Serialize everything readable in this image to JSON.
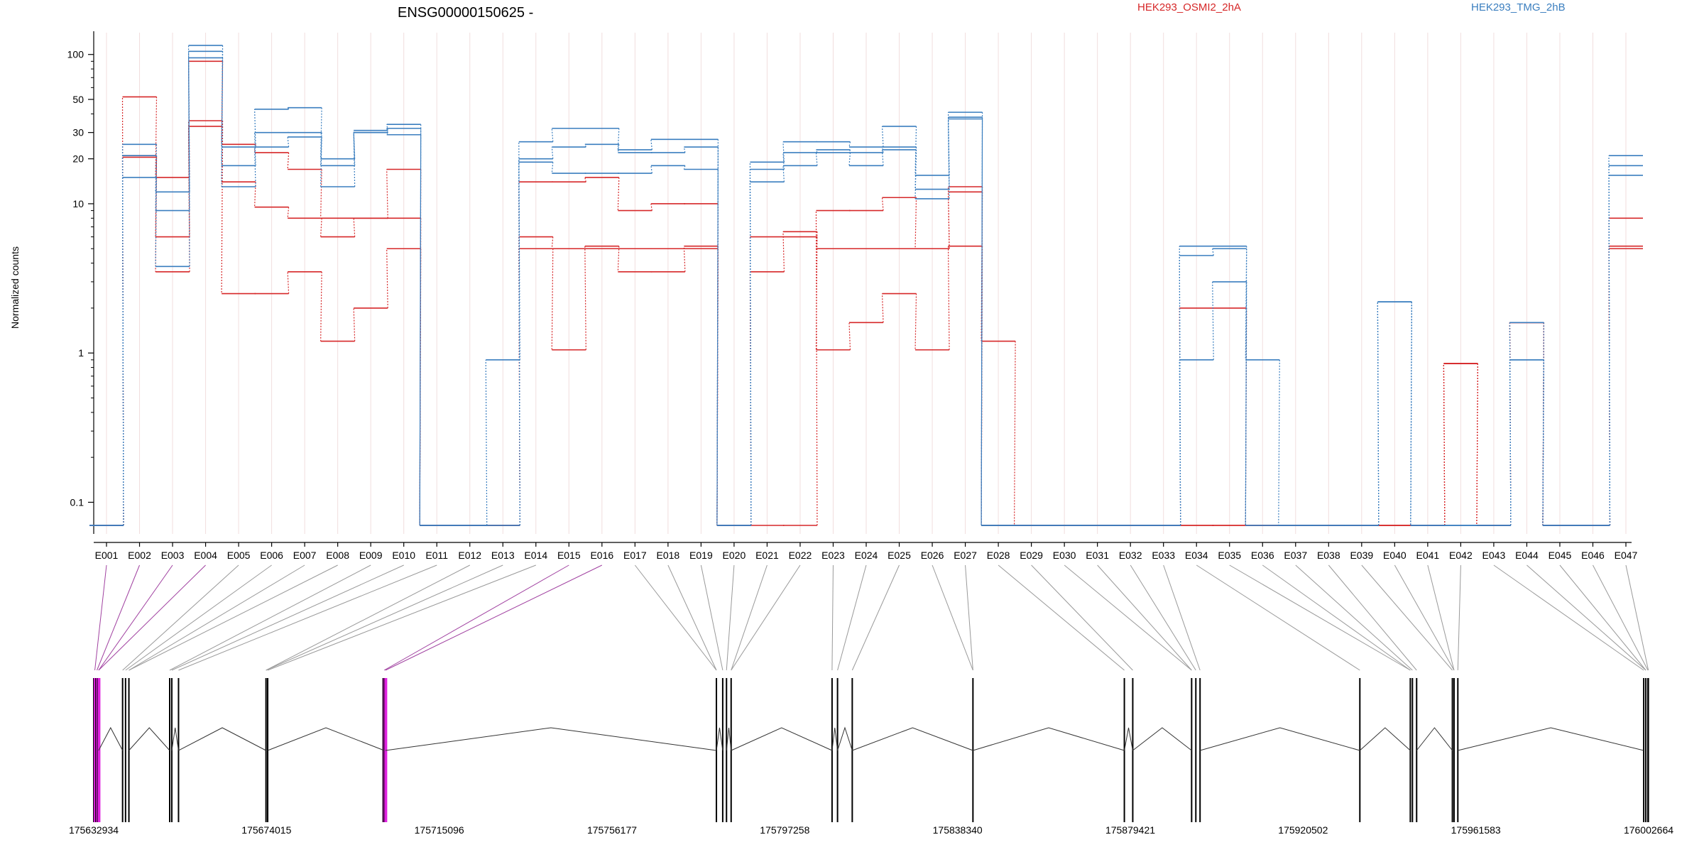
{
  "chart_data": {
    "type": "line",
    "title": "ENSG00000150625 -",
    "ylabel": "Normalized counts",
    "yscale": "log",
    "ylim": [
      0.07,
      140
    ],
    "yticks": [
      0.1,
      1,
      10,
      20,
      30,
      50,
      100
    ],
    "ytick_labels": [
      "0.1",
      "1",
      "10",
      "20",
      "30",
      "50",
      "100"
    ],
    "legend": [
      {
        "name": "HEK293_OSMI2_2hA",
        "color": "#d62728"
      },
      {
        "name": "HEK293_TMG_2hB",
        "color": "#3a7ebf"
      }
    ],
    "categories": [
      "E001",
      "E002",
      "E003",
      "E004",
      "E005",
      "E006",
      "E007",
      "E008",
      "E009",
      "E010",
      "E011",
      "E012",
      "E013",
      "E014",
      "E015",
      "E016",
      "E017",
      "E018",
      "E019",
      "E020",
      "E021",
      "E022",
      "E023",
      "E024",
      "E025",
      "E026",
      "E027",
      "E028",
      "E029",
      "E030",
      "E031",
      "E032",
      "E033",
      "E034",
      "E035",
      "E036",
      "E037",
      "E038",
      "E039",
      "E040",
      "E041",
      "E042",
      "E043",
      "E044",
      "E045",
      "E046",
      "E047"
    ],
    "series": [
      {
        "group": "HEK293_OSMI2_2hA",
        "color": "#d62728",
        "values": [
          0.07,
          52,
          15,
          90,
          25,
          22,
          17,
          8,
          8,
          17,
          0.07,
          0.07,
          0.07,
          14,
          14,
          15,
          9,
          10,
          10,
          0.07,
          0.07,
          0.07,
          9,
          9,
          11,
          5,
          13,
          1.2,
          0.07,
          0.07,
          0.07,
          0.07,
          0.07,
          0.07,
          0.07,
          0.07,
          0.07,
          0.07,
          0.07,
          0.07,
          0.07,
          0.85,
          0.07,
          1.6,
          0.07,
          0.07,
          8
        ]
      },
      {
        "group": "HEK293_OSMI2_2hA",
        "color": "#d62728",
        "values": [
          0.07,
          21,
          6,
          36,
          14,
          9.5,
          8,
          6,
          8,
          8,
          0.07,
          0.07,
          0.07,
          6,
          5,
          5,
          5,
          5,
          5,
          0.07,
          6,
          6,
          5,
          5,
          5,
          5,
          12,
          0.07,
          0.07,
          0.07,
          0.07,
          0.07,
          0.07,
          2,
          2,
          0.07,
          0.07,
          0.07,
          0.07,
          0.07,
          0.07,
          0.85,
          0.07,
          1.6,
          0.07,
          0.07,
          5.2
        ]
      },
      {
        "group": "HEK293_OSMI2_2hA",
        "color": "#d62728",
        "values": [
          0.07,
          20.5,
          3.5,
          33,
          2.5,
          2.5,
          3.5,
          1.2,
          2,
          5,
          0.07,
          0.07,
          0.07,
          5,
          1.05,
          5.2,
          3.5,
          3.5,
          5.2,
          0.07,
          3.5,
          6.5,
          1.05,
          1.6,
          2.5,
          1.05,
          5.2,
          0.07,
          0.07,
          0.07,
          0.07,
          0.07,
          0.07,
          0.07,
          0.07,
          0.07,
          0.07,
          0.07,
          0.07,
          0.07,
          0.07,
          0.85,
          0.07,
          1.6,
          0.07,
          0.07,
          5
        ]
      },
      {
        "group": "HEK293_TMG_2hB",
        "color": "#3a7ebf",
        "values": [
          0.07,
          25,
          12,
          115,
          24,
          43,
          44,
          20,
          31,
          34,
          0.07,
          0.07,
          0.9,
          26,
          32,
          32,
          23,
          27,
          27,
          0.07,
          19,
          26,
          26,
          24,
          33,
          15.5,
          41,
          0.07,
          0.07,
          0.07,
          0.07,
          0.07,
          0.07,
          5.2,
          5.2,
          0.9,
          0.07,
          0.07,
          0.07,
          2.2,
          0.07,
          0.07,
          0.07,
          1.6,
          0.07,
          0.07,
          21
        ]
      },
      {
        "group": "HEK293_TMG_2hB",
        "color": "#3a7ebf",
        "values": [
          0.07,
          21,
          9,
          105,
          18,
          30,
          30,
          18,
          30,
          32,
          0.07,
          0.07,
          0.07,
          20,
          24,
          25,
          22,
          22,
          24,
          0.07,
          17,
          22,
          23,
          22,
          24,
          12.5,
          38,
          0.07,
          0.07,
          0.07,
          0.07,
          0.07,
          0.07,
          4.5,
          5,
          0.07,
          0.07,
          0.07,
          0.07,
          2.2,
          0.07,
          0.07,
          0.07,
          0.9,
          0.07,
          0.07,
          18
        ]
      },
      {
        "group": "HEK293_TMG_2hB",
        "color": "#3a7ebf",
        "values": [
          0.07,
          15,
          3.8,
          95,
          13,
          24,
          28,
          13,
          30,
          29,
          0.07,
          0.07,
          0.07,
          19,
          16,
          16,
          16,
          18,
          17,
          0.07,
          14,
          18,
          22,
          18,
          23,
          10.8,
          37,
          0.07,
          0.07,
          0.07,
          0.07,
          0.07,
          0.07,
          0.9,
          3,
          0.07,
          0.07,
          0.07,
          0.07,
          2.2,
          0.07,
          0.07,
          0.07,
          0.9,
          0.07,
          0.07,
          15.5
        ]
      }
    ],
    "gene_model": {
      "coordinate_labels": [
        "175632934",
        "175674015",
        "175715096",
        "175756177",
        "175797258",
        "175838340",
        "175879421",
        "175920502",
        "175961583",
        "176002664"
      ],
      "coord_range": [
        175632934,
        176002664
      ],
      "highlight_color": "#e020e0",
      "exon_coords": [
        175633200,
        175633700,
        175634100,
        175639800,
        175640500,
        175641300,
        175651000,
        175651500,
        175653100,
        175673900,
        175674300,
        175702000,
        175702300,
        175781000,
        175782500,
        175783400,
        175784500,
        175808500,
        175809800,
        175813300,
        175842000,
        175878000,
        175880000,
        175894000,
        175895000,
        175896000,
        175934000,
        175946000,
        175946500,
        175947500,
        175956000,
        175956400,
        175957300,
        176001500,
        176002000,
        176002500,
        176002600
      ],
      "exon_highlighted": [
        true,
        true,
        true,
        false,
        false,
        false,
        false,
        false,
        false,
        false,
        false,
        true,
        true,
        false,
        false,
        false,
        false,
        false,
        false,
        false,
        false,
        false,
        false,
        false,
        false,
        false,
        false,
        false,
        false,
        false,
        false,
        false,
        false,
        false,
        false,
        false,
        false
      ]
    }
  }
}
